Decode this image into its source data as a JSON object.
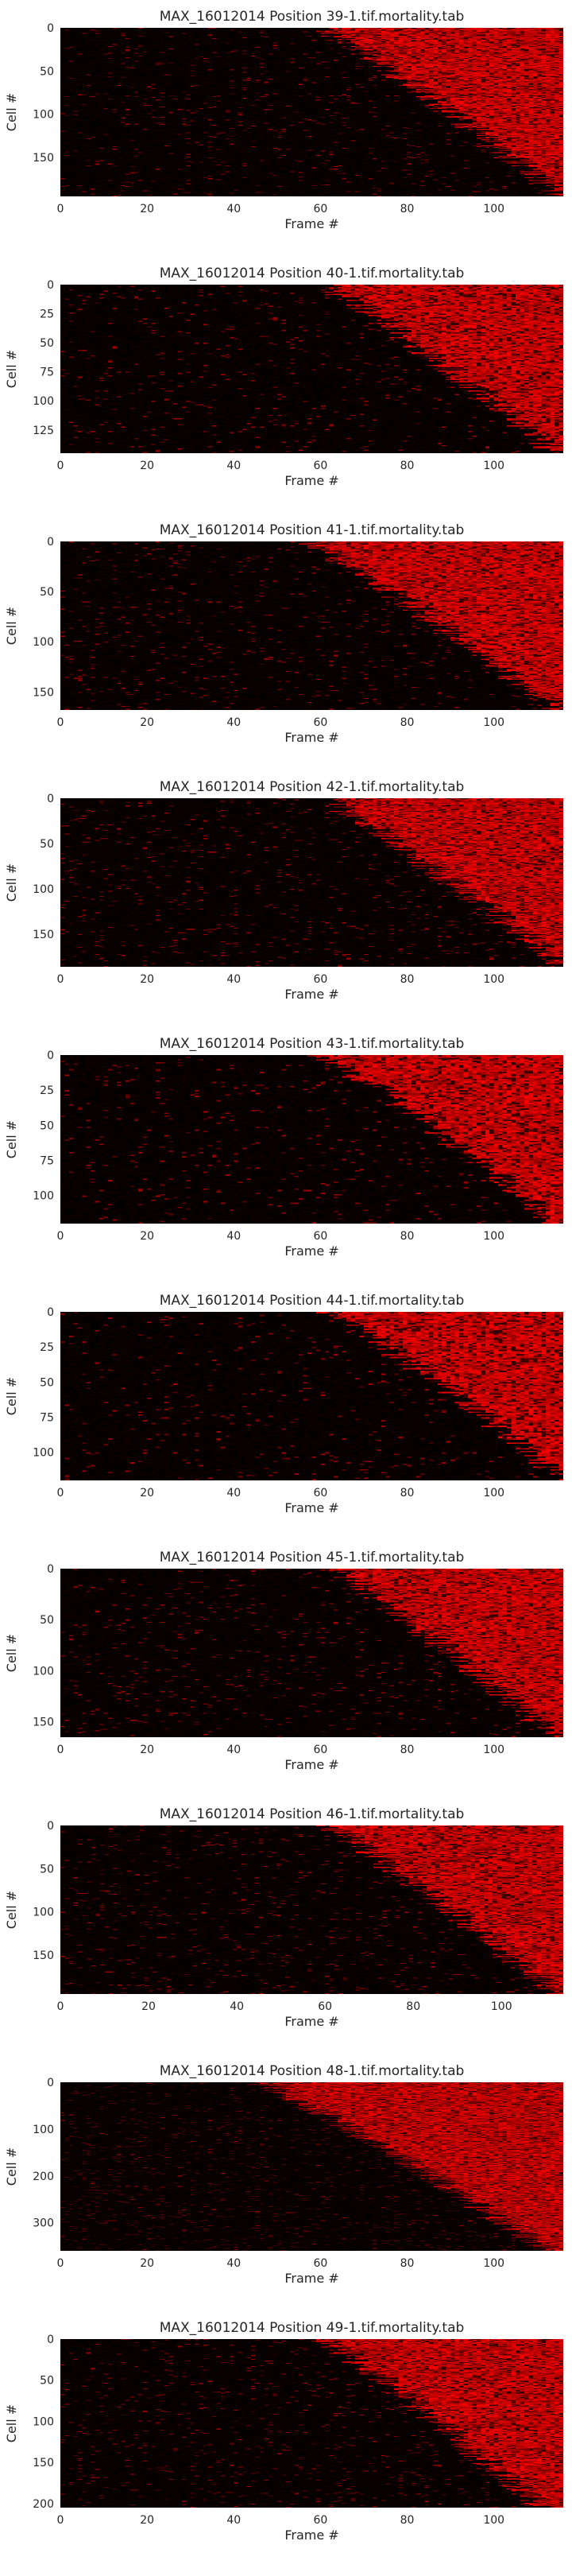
{
  "figure": {
    "colormap": [
      "#000000",
      "#ff0000"
    ],
    "text_color": "#262626"
  },
  "chart_data": [
    {
      "type": "heatmap",
      "title": "MAX_16012014 Position 39-1.tif.mortality.tab",
      "xlabel": "Frame #",
      "ylabel": "Cell #",
      "xlim": [
        0,
        116
      ],
      "ylim": [
        195,
        0
      ],
      "n_rows": 195,
      "n_cols": 116,
      "xticks": [
        0,
        20,
        40,
        60,
        80,
        100
      ],
      "yticks": [
        0,
        50,
        100,
        150
      ],
      "onset": {
        "start": 60,
        "end": 115
      },
      "value_range": [
        0,
        1
      ]
    },
    {
      "type": "heatmap",
      "title": "MAX_16012014 Position 40-1.tif.mortality.tab",
      "xlabel": "Frame #",
      "ylabel": "Cell #",
      "xlim": [
        0,
        116
      ],
      "ylim": [
        145,
        0
      ],
      "n_rows": 145,
      "n_cols": 116,
      "xticks": [
        0,
        20,
        40,
        60,
        80,
        100
      ],
      "yticks": [
        0,
        25,
        50,
        75,
        100,
        125
      ],
      "onset": {
        "start": 60,
        "end": 114
      },
      "value_range": [
        0,
        1
      ]
    },
    {
      "type": "heatmap",
      "title": "MAX_16012014 Position 41-1.tif.mortality.tab",
      "xlabel": "Frame #",
      "ylabel": "Cell #",
      "xlim": [
        0,
        116
      ],
      "ylim": [
        168,
        0
      ],
      "n_rows": 168,
      "n_cols": 116,
      "xticks": [
        0,
        20,
        40,
        60,
        80,
        100
      ],
      "yticks": [
        0,
        50,
        100,
        150
      ],
      "onset": {
        "start": 56,
        "end": 114
      },
      "value_range": [
        0,
        1
      ]
    },
    {
      "type": "heatmap",
      "title": "MAX_16012014 Position 42-1.tif.mortality.tab",
      "xlabel": "Frame #",
      "ylabel": "Cell #",
      "xlim": [
        0,
        116
      ],
      "ylim": [
        186,
        0
      ],
      "n_rows": 186,
      "n_cols": 116,
      "xticks": [
        0,
        20,
        40,
        60,
        80,
        100
      ],
      "yticks": [
        0,
        50,
        100,
        150
      ],
      "onset": {
        "start": 60,
        "end": 116
      },
      "value_range": [
        0,
        1
      ]
    },
    {
      "type": "heatmap",
      "title": "MAX_16012014 Position 43-1.tif.mortality.tab",
      "xlabel": "Frame #",
      "ylabel": "Cell #",
      "xlim": [
        0,
        116
      ],
      "ylim": [
        120,
        0
      ],
      "n_rows": 120,
      "n_cols": 116,
      "xticks": [
        0,
        20,
        40,
        60,
        80,
        100
      ],
      "yticks": [
        0,
        25,
        50,
        75,
        100
      ],
      "onset": {
        "start": 60,
        "end": 114
      },
      "value_range": [
        0,
        1
      ]
    },
    {
      "type": "heatmap",
      "title": "MAX_16012014 Position 44-1.tif.mortality.tab",
      "xlabel": "Frame #",
      "ylabel": "Cell #",
      "xlim": [
        0,
        116
      ],
      "ylim": [
        120,
        0
      ],
      "n_rows": 120,
      "n_cols": 116,
      "xticks": [
        0,
        20,
        40,
        60,
        80,
        100
      ],
      "yticks": [
        0,
        25,
        50,
        75,
        100
      ],
      "onset": {
        "start": 62,
        "end": 116
      },
      "value_range": [
        0,
        1
      ]
    },
    {
      "type": "heatmap",
      "title": "MAX_16012014 Position 45-1.tif.mortality.tab",
      "xlabel": "Frame #",
      "ylabel": "Cell #",
      "xlim": [
        0,
        116
      ],
      "ylim": [
        165,
        0
      ],
      "n_rows": 165,
      "n_cols": 116,
      "xticks": [
        0,
        20,
        40,
        60,
        80,
        100
      ],
      "yticks": [
        0,
        50,
        100,
        150
      ],
      "onset": {
        "start": 62,
        "end": 114
      },
      "value_range": [
        0,
        1
      ]
    },
    {
      "type": "heatmap",
      "title": "MAX_16012014 Position 46-1.tif.mortality.tab",
      "xlabel": "Frame #",
      "ylabel": "Cell #",
      "xlim": [
        0,
        114
      ],
      "ylim": [
        195,
        0
      ],
      "n_rows": 195,
      "n_cols": 114,
      "xticks": [
        0,
        20,
        40,
        60,
        80,
        100
      ],
      "yticks": [
        0,
        50,
        100,
        150
      ],
      "onset": {
        "start": 60,
        "end": 112
      },
      "value_range": [
        0,
        1
      ]
    },
    {
      "type": "heatmap",
      "title": "MAX_16012014 Position 48-1.tif.mortality.tab",
      "xlabel": "Frame #",
      "ylabel": "Cell #",
      "xlim": [
        0,
        116
      ],
      "ylim": [
        360,
        0
      ],
      "n_rows": 360,
      "n_cols": 116,
      "xticks": [
        0,
        20,
        40,
        60,
        80,
        100
      ],
      "yticks": [
        0,
        100,
        200,
        300
      ],
      "onset": {
        "start": 46,
        "end": 112
      },
      "value_range": [
        0,
        1
      ]
    },
    {
      "type": "heatmap",
      "title": "MAX_16012014 Position 49-1.tif.mortality.tab",
      "xlabel": "Frame #",
      "ylabel": "Cell #",
      "xlim": [
        0,
        116
      ],
      "ylim": [
        205,
        0
      ],
      "n_rows": 205,
      "n_cols": 116,
      "xticks": [
        0,
        20,
        40,
        60,
        80,
        100
      ],
      "yticks": [
        0,
        50,
        100,
        150,
        200
      ],
      "onset": {
        "start": 60,
        "end": 110
      },
      "value_range": [
        0,
        1
      ]
    }
  ]
}
